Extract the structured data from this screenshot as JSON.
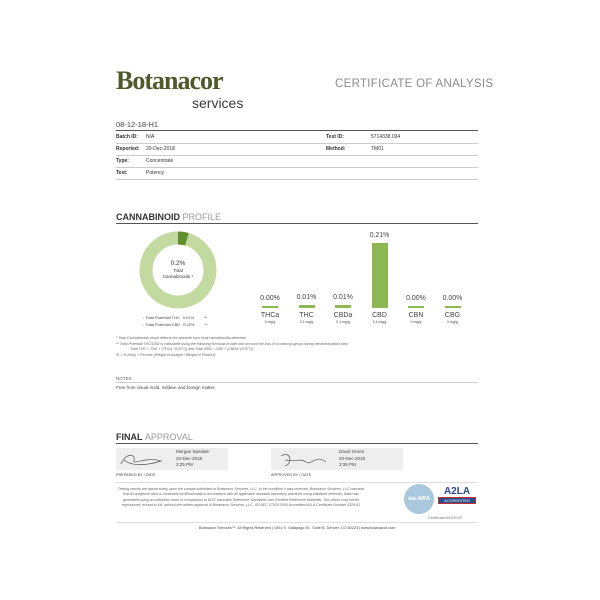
{
  "header": {
    "logo_main": "Botanacor",
    "logo_sub": "services",
    "title": "CERTIFICATE OF ANALYSIS"
  },
  "sample_id": "08-12-18-H1",
  "fields": [
    {
      "label": "Batch ID:",
      "value": "N/A",
      "label2": "Test ID:",
      "value2": "5714338.034"
    },
    {
      "label": "Reported:",
      "value": "20-Dec-2018",
      "label2": "Method:",
      "value2": "TM01"
    },
    {
      "label": "Type:",
      "value": "Concentrate",
      "label2": "",
      "value2": ""
    },
    {
      "label": "Test:",
      "value": "Potency",
      "label2": "",
      "value2": ""
    }
  ],
  "profile": {
    "title_bold": "CANNABINOID",
    "title_light": "PROFILE",
    "donut": {
      "value": "0.2%",
      "label1": "Total",
      "label2": "Cannabinoids *"
    },
    "totals": [
      {
        "label": "Total Potential THC",
        "value": "0.01%",
        "mark": "**"
      },
      {
        "label": "Total Potential CBD",
        "value": "0.22%",
        "mark": "**"
      }
    ]
  },
  "colors": {
    "bar": "#8db750",
    "donut_light": "#c2d9a0",
    "donut_dark": "#5f8f2e"
  },
  "chart_data": {
    "type": "bar",
    "categories": [
      "THCa",
      "THC",
      "CBDa",
      "CBD",
      "CBN",
      "CBG"
    ],
    "values": [
      0.0,
      0.01,
      0.01,
      0.21,
      0.0,
      0.0
    ],
    "value_labels": [
      "0.00%",
      "0.01%",
      "0.01%",
      "0.21%",
      "0.00%",
      "0.00%"
    ],
    "sublabels": [
      "0 mg/g",
      "0.1 mg/g",
      "0.1 mg/g",
      "2.1 mg/g",
      "0 mg/g",
      "0 mg/g"
    ]
  },
  "footnotes": [
    "* Total Cannabinoids result reflects the absolute sum of all cannabinoids detected.",
    "** Total Potential THC/CBD is calculated using the following formulas to take into account the loss of a carboxyl group during decarboxylation step.",
    "Total THC = THC + (THCa *(0.877)) and Total CBD = CBD + (CBDa *(0.877))",
    "% = % (w/w) = Percent (Weight of Analyte / Weight of Product)"
  ],
  "notes": {
    "label": "NOTES:",
    "text": "Free from visual mold, mildew, and foreign matter."
  },
  "approval": {
    "title_bold": "FINAL",
    "title_light": "APPROVAL",
    "prepared": {
      "name": "Morgan Spedale",
      "date": "20-Dec-2018",
      "time": "3:25 PM",
      "label": "PREPARED BY / DATE"
    },
    "approved": {
      "name": "David Green",
      "date": "20-Dec-2018",
      "time": "3:39 PM",
      "label": "APPROVED BY / DATE"
    }
  },
  "disclaimer": "Testing results are based solely upon the sample submitted to Botanacor Services, LLC, in the condition it was received. Botanacor Services, LLC warrants that all analytical work is conducted professionally in accordance with all applicable standard laboratory practices using validated methods. Data was generated using an unbroken chain of comparison to NIST traceable Reference Standards and Certified Reference Materials. This report may not be reproduced, except in full, without the written approval of Botanacor Services, LLC. ISO/IEC 17025:2005 Accredited A2LA Certificate Number 4329.02",
  "badges": {
    "ilac": "ilac-MRA",
    "a2la": "A2LA",
    "accredited": "ACCREDITED",
    "certificate": "Certificate #4329.02"
  },
  "footer": "Botanacor Services™, All Rights Reserved | 1001 S. Galapago St., Suite B, Denver, CO 80223 | www.botanacor.com"
}
